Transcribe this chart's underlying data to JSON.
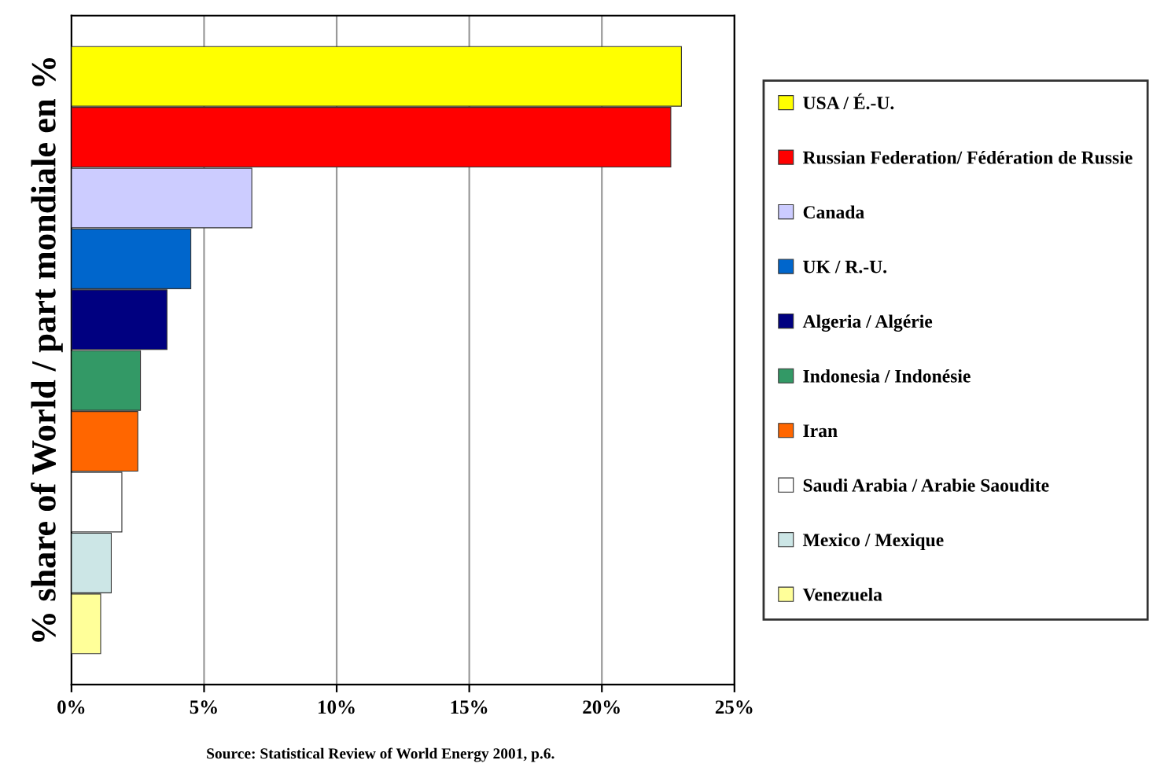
{
  "chart_data": {
    "type": "bar",
    "orientation": "horizontal",
    "ylabel": "% share of World / part mondiale en %",
    "categories": [
      null,
      null,
      null,
      null,
      null,
      null,
      null,
      null,
      null,
      null
    ],
    "series": [
      {
        "name": "USA / É.-U.",
        "color": "#ffff00",
        "values": [
          23.0,
          null,
          null,
          null,
          null,
          null,
          null,
          null,
          null,
          null
        ]
      },
      {
        "name": "Russian Federation/ Fédération de Russie",
        "color": "#ff0000",
        "values": [
          null,
          22.6,
          null,
          null,
          null,
          null,
          null,
          null,
          null,
          null
        ]
      },
      {
        "name": "Canada",
        "color": "#ccccff",
        "values": [
          null,
          null,
          6.8,
          null,
          null,
          null,
          null,
          null,
          null,
          null
        ]
      },
      {
        "name": "UK / R.-U.",
        "color": "#0066cc",
        "values": [
          null,
          null,
          null,
          4.5,
          null,
          null,
          null,
          null,
          null,
          null
        ]
      },
      {
        "name": "Algeria / Algérie",
        "color": "#000080",
        "values": [
          null,
          null,
          null,
          null,
          3.6,
          null,
          null,
          null,
          null,
          null
        ]
      },
      {
        "name": "Indonesia / Indonésie",
        "color": "#339966",
        "values": [
          null,
          null,
          null,
          null,
          null,
          2.6,
          null,
          null,
          null,
          null
        ]
      },
      {
        "name": "Iran",
        "color": "#ff6600",
        "values": [
          null,
          null,
          null,
          null,
          null,
          null,
          2.5,
          null,
          null,
          null
        ]
      },
      {
        "name": "Saudi Arabia / Arabie Saoudite",
        "color": "#ffffff",
        "values": [
          null,
          null,
          null,
          null,
          null,
          null,
          null,
          1.9,
          null,
          null
        ]
      },
      {
        "name": "Mexico / Mexique",
        "color": "#cce6e6",
        "values": [
          null,
          null,
          null,
          null,
          null,
          null,
          null,
          null,
          1.5,
          null
        ]
      },
      {
        "name": "Venezuela",
        "color": "#ffff99",
        "values": [
          null,
          null,
          null,
          null,
          null,
          null,
          null,
          null,
          null,
          1.1
        ]
      }
    ],
    "xlim": [
      0,
      25
    ],
    "xticks": [
      {
        "value": 0,
        "label": "0%"
      },
      {
        "value": 5,
        "label": "5%"
      },
      {
        "value": 10,
        "label": "10%"
      },
      {
        "value": 15,
        "label": "15%"
      },
      {
        "value": 20,
        "label": "20%"
      },
      {
        "value": 25,
        "label": "25%"
      }
    ],
    "grid": "x",
    "legend": "right",
    "tick_labels": "x",
    "annotations": [
      "Source: Statistical Review of World Energy 2001, p.6."
    ]
  }
}
